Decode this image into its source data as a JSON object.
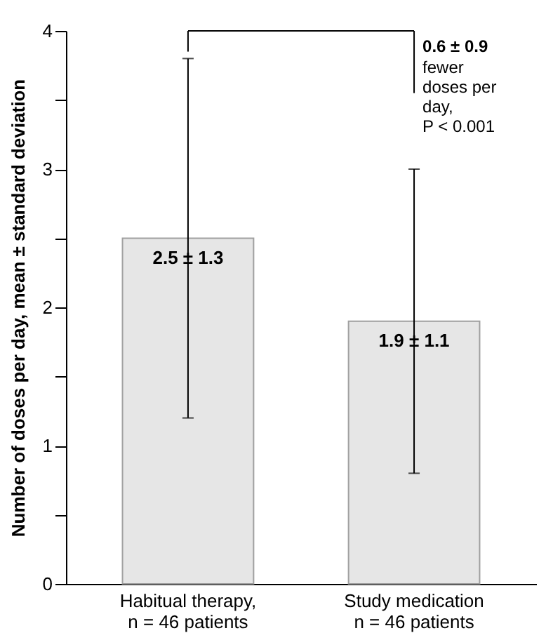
{
  "chart_data": {
    "type": "bar",
    "ylabel": "Number of doses per day, mean ± standard deviation",
    "categories": [
      "Habitual therapy,\nn = 46 patients",
      "Study medication\nn = 46 patients"
    ],
    "values": [
      2.5,
      1.9
    ],
    "errors": [
      1.3,
      1.1
    ],
    "color": "#e6e6e6",
    "value_labels": [
      "2.5 ± 1.3",
      "1.9 ± 1.1"
    ],
    "annotations": [
      "0.6 ± 0.9",
      "fewer\ndoses per\nday,\nP < 0.001"
    ],
    "ylim": [
      0,
      4
    ],
    "yticks": [
      0,
      {
        "value": 0.5,
        "label": null
      },
      1,
      {
        "value": 1.5,
        "label": null
      },
      2,
      {
        "value": 2.5,
        "label": null
      },
      3,
      {
        "value": 3.5,
        "label": null
      },
      4
    ],
    "grid": false
  }
}
